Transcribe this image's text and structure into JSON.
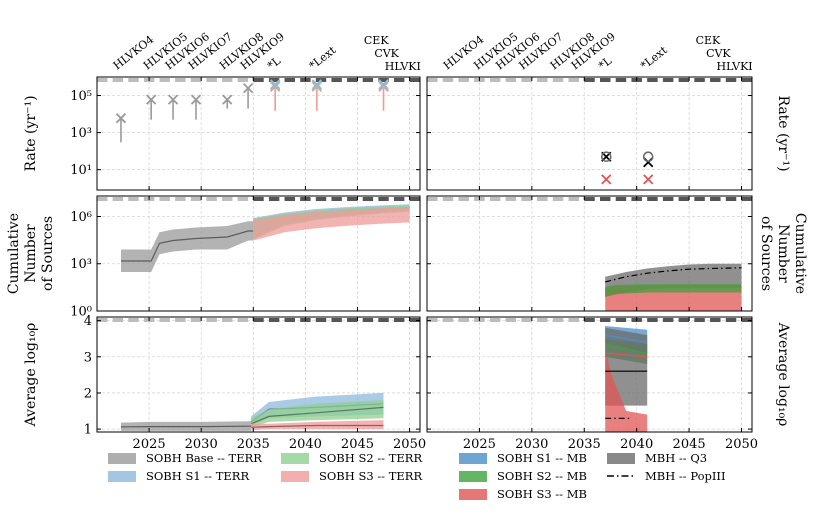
{
  "chart_data": {
    "type": "area",
    "xlim": [
      2020,
      2051
    ],
    "xticks": [
      2025,
      2030,
      2035,
      2040,
      2045,
      2050
    ],
    "detector_labels": {
      "left": [
        {
          "text": "HLVKO4",
          "x": 2022.3
        },
        {
          "text": "HLVKIO5",
          "x": 2025.2
        },
        {
          "text": "HLVKIO6",
          "x": 2027.3
        },
        {
          "text": "HLVKIO7",
          "x": 2029.5
        },
        {
          "text": "HLVKIO8",
          "x": 2032.5
        },
        {
          "text": "HLVKIO9",
          "x": 2034.5
        },
        {
          "text": "*L",
          "x": 2037.1
        },
        {
          "text": "*Lext",
          "x": 2041.1
        },
        {
          "text": "CEK",
          "x": 2046.0
        },
        {
          "text": "CVK",
          "x": 2047.0
        },
        {
          "text": "HLVKI",
          "x": 2048.0
        }
      ],
      "right": [
        {
          "text": "HLVKO4",
          "x": 2022.3
        },
        {
          "text": "HLVKIO5",
          "x": 2025.2
        },
        {
          "text": "HLVKIO6",
          "x": 2027.3
        },
        {
          "text": "HLVKIO7",
          "x": 2029.5
        },
        {
          "text": "HLVKIO8",
          "x": 2032.5
        },
        {
          "text": "HLVKIO9",
          "x": 2034.5
        },
        {
          "text": "*L",
          "x": 2037.1
        },
        {
          "text": "*Lext",
          "x": 2041.1
        },
        {
          "text": "CEK",
          "x": 2046.0
        },
        {
          "text": "CVK",
          "x": 2047.0
        },
        {
          "text": "HLVKI",
          "x": 2048.0
        }
      ]
    },
    "rows": [
      {
        "key": "rate",
        "ylabel_left": "Rate (yr⁻¹)",
        "ylabel_right": "Rate (yr⁻¹)",
        "yscale": "log",
        "ylim": [
          0.8,
          1000000
        ],
        "yticks": [
          {
            "v": 10,
            "label": "10¹"
          },
          {
            "v": 1000,
            "label": "10³"
          },
          {
            "v": 100000,
            "label": "10⁵"
          }
        ]
      },
      {
        "key": "cumulative",
        "ylabel_left": [
          "Cumulative",
          "Number",
          "of Sources"
        ],
        "ylabel_right": [
          "Cumulative",
          "Number",
          "of Sources"
        ],
        "yscale": "log",
        "ylim": [
          1,
          20000000
        ],
        "yticks": [
          {
            "v": 1,
            "label": "10⁰"
          },
          {
            "v": 1000,
            "label": "10³"
          },
          {
            "v": 1000000,
            "label": "10⁶"
          }
        ]
      },
      {
        "key": "snr",
        "ylabel_left": "Average log₁₀ρ",
        "ylabel_right": "Average log₁₀ρ",
        "yscale": "linear",
        "ylim": [
          0.92,
          4.1
        ],
        "yticks": [
          {
            "v": 1,
            "label": "1"
          },
          {
            "v": 2,
            "label": "2"
          },
          {
            "v": 3,
            "label": "3"
          },
          {
            "v": 4,
            "label": "4"
          }
        ]
      }
    ],
    "series": {
      "base_terr": {
        "name": "SOBH Base -- TERR",
        "color": "#9a9a9a"
      },
      "s1_terr": {
        "name": "SOBH S1 -- TERR",
        "color": "#8fb8dc"
      },
      "s2_terr": {
        "name": "SOBH S2 -- TERR",
        "color": "#8fcf8f"
      },
      "s3_terr": {
        "name": "SOBH S3 -- TERR",
        "color": "#f09a9a"
      },
      "s1_mb": {
        "name": "SOBH S1 -- MB",
        "color": "#4b8fc6"
      },
      "s2_mb": {
        "name": "SOBH S2 -- MB",
        "color": "#3da23d"
      },
      "s3_mb": {
        "name": "SOBH S3 -- MB",
        "color": "#e05555"
      },
      "mbh_q3": {
        "name": "MBH -- Q3",
        "color": "#6b6b6b"
      },
      "mbh_popiii": {
        "name": "MBH -- PopIII",
        "color": "#000000"
      }
    },
    "legend": [
      {
        "key": "base_terr",
        "marker": "patch"
      },
      {
        "key": "s1_terr",
        "marker": "patch"
      },
      {
        "key": "s2_terr",
        "marker": "patch"
      },
      {
        "key": "s3_terr",
        "marker": "patch"
      },
      {
        "key": "s1_mb",
        "marker": "patch"
      },
      {
        "key": "s2_mb",
        "marker": "patch"
      },
      {
        "key": "s3_mb",
        "marker": "patch"
      },
      {
        "key": "mbh_q3",
        "marker": "patch"
      },
      {
        "key": "mbh_popiii",
        "marker": "dashdot"
      }
    ],
    "legend_placement": "bottom",
    "grid": true,
    "panels": {
      "rate_left": {
        "markers": [
          {
            "series": "base_terr",
            "x": 2022.3,
            "y": 6000,
            "low": 300,
            "high": 6000
          },
          {
            "series": "base_terr",
            "x": 2025.2,
            "y": 60000,
            "low": 5000,
            "high": 60000
          },
          {
            "series": "base_terr",
            "x": 2027.3,
            "y": 60000,
            "low": 5000,
            "high": 60000
          },
          {
            "series": "base_terr",
            "x": 2029.5,
            "y": 60000,
            "low": 5000,
            "high": 60000
          },
          {
            "series": "base_terr",
            "x": 2032.5,
            "y": 60000,
            "low": 20000,
            "high": 60000
          },
          {
            "series": "base_terr",
            "x": 2034.5,
            "y": 250000,
            "low": 20000,
            "high": 250000
          },
          {
            "series": "s3_terr",
            "x": 2037.1,
            "y": 300000,
            "low": 15000,
            "high": 350000
          },
          {
            "series": "s2_terr",
            "x": 2037.1,
            "y": 350000
          },
          {
            "series": "s1_terr",
            "x": 2037.1,
            "y": 400000
          },
          {
            "series": "s3_terr",
            "x": 2041.1,
            "y": 300000,
            "low": 15000,
            "high": 350000
          },
          {
            "series": "s2_terr",
            "x": 2041.1,
            "y": 350000
          },
          {
            "series": "s1_terr",
            "x": 2041.1,
            "y": 400000
          },
          {
            "series": "s3_terr",
            "x": 2047.5,
            "y": 300000,
            "low": 15000,
            "high": 350000
          },
          {
            "series": "s2_terr",
            "x": 2047.5,
            "y": 350000
          },
          {
            "series": "s1_terr",
            "x": 2047.5,
            "y": 400000
          }
        ]
      },
      "rate_right": {
        "markers": [
          {
            "series": "mbh_popiii",
            "x": 2037.1,
            "y": 50,
            "symbol": "x"
          },
          {
            "series": "mbh_q3",
            "x": 2037.1,
            "y": 50,
            "symbol": "o"
          },
          {
            "series": "s3_mb",
            "x": 2037.1,
            "y": 3,
            "symbol": "x"
          },
          {
            "series": "mbh_popiii",
            "x": 2041.1,
            "y": 25,
            "symbol": "x"
          },
          {
            "series": "mbh_q3",
            "x": 2041.1,
            "y": 50,
            "symbol": "o"
          },
          {
            "series": "s3_mb",
            "x": 2041.1,
            "y": 3,
            "symbol": "x"
          }
        ]
      },
      "cumulative_left": {
        "bands": [
          {
            "series": "base_terr",
            "x": [
              2022.3,
              2025.2,
              2026,
              2027.3,
              2029.5,
              2032.5,
              2034.5,
              2035
            ],
            "low": [
              300,
              300,
              4000,
              6000,
              8000,
              8000,
              30000,
              30000
            ],
            "high": [
              8000,
              8000,
              100000,
              150000,
              200000,
              250000,
              500000,
              500000
            ],
            "mid": [
              1500,
              1500,
              20000,
              30000,
              40000,
              50000,
              120000,
              120000
            ]
          },
          {
            "series": "s1_terr",
            "x": [
              2035,
              2038,
              2041,
              2044,
              2047,
              2050
            ],
            "low": [
              40000,
              300000,
              700000,
              1200000,
              1800000,
              2500000
            ],
            "high": [
              800000,
              1800000,
              3000000,
              4000000,
              5000000,
              6000000
            ]
          },
          {
            "series": "s2_terr",
            "x": [
              2035,
              2038,
              2041,
              2044,
              2047,
              2050
            ],
            "low": [
              35000,
              250000,
              600000,
              1000000,
              1500000,
              2000000
            ],
            "high": [
              700000,
              1500000,
              2500000,
              3300000,
              4200000,
              5000000
            ]
          },
          {
            "series": "s3_terr",
            "x": [
              2035,
              2038,
              2041,
              2044,
              2047,
              2050
            ],
            "low": [
              30000,
              100000,
              180000,
              260000,
              340000,
              420000
            ],
            "high": [
              600000,
              1300000,
              2000000,
              2600000,
              3300000,
              4000000
            ]
          }
        ]
      },
      "cumulative_right": {
        "bands": [
          {
            "series": "mbh_q3",
            "x": [
              2037,
              2039,
              2041,
              2043,
              2045,
              2047,
              2050
            ],
            "low": [
              8,
              15,
              25,
              30,
              30,
              30,
              30
            ],
            "high": [
              150,
              300,
              500,
              700,
              900,
              1000,
              1000
            ]
          },
          {
            "series": "s3_mb",
            "x": [
              2037,
              2038,
              2041,
              2045,
              2050
            ],
            "low": [
              1.05,
              1.05,
              1.05,
              1.05,
              1.05
            ],
            "high": [
              25,
              40,
              45,
              45,
              45
            ]
          },
          {
            "series": "s2_mb",
            "x": [
              2037,
              2038,
              2041,
              2045,
              2050
            ],
            "low": [
              8,
              12,
              15,
              15,
              15
            ],
            "high": [
              35,
              45,
              50,
              50,
              50
            ]
          }
        ],
        "lines": [
          {
            "series": "mbh_popiii",
            "x": [
              2037,
              2039,
              2041,
              2043,
              2045,
              2047,
              2050
            ],
            "y": [
              70,
              150,
              250,
              350,
              450,
              500,
              550
            ]
          }
        ]
      },
      "snr_left": {
        "bands": [
          {
            "series": "base_terr",
            "x": [
              2022.3,
              2025,
              2030,
              2034.8
            ],
            "low": [
              0.95,
              0.95,
              0.95,
              0.95
            ],
            "high": [
              1.18,
              1.2,
              1.2,
              1.22
            ],
            "mid": [
              1.06,
              1.07,
              1.07,
              1.08
            ]
          },
          {
            "series": "s1_terr",
            "x": [
              2034.8,
              2036.5,
              2041,
              2047.5
            ],
            "low": [
              1.1,
              1.3,
              1.35,
              1.4
            ],
            "high": [
              1.35,
              1.75,
              1.9,
              2.0
            ],
            "mid": [
              1.2,
              1.55,
              1.6,
              1.7
            ]
          },
          {
            "series": "s2_terr",
            "x": [
              2034.8,
              2036.5,
              2041,
              2047.5
            ],
            "low": [
              1.05,
              1.2,
              1.25,
              1.3
            ],
            "high": [
              1.3,
              1.55,
              1.7,
              1.8
            ],
            "mid": [
              1.15,
              1.35,
              1.45,
              1.6
            ]
          },
          {
            "series": "s3_terr",
            "x": [
              2034.8,
              2036.5,
              2041,
              2047.5
            ],
            "low": [
              0.97,
              1.0,
              1.0,
              1.0
            ],
            "high": [
              1.15,
              1.15,
              1.2,
              1.25
            ],
            "mid": [
              1.05,
              1.07,
              1.1,
              1.1
            ]
          }
        ]
      },
      "snr_right": {
        "bands": [
          {
            "series": "s1_mb",
            "x": [
              2037,
              2041
            ],
            "low": [
              3.4,
              3.1
            ],
            "high": [
              3.85,
              3.75
            ]
          },
          {
            "series": "s2_mb",
            "x": [
              2037,
              2041
            ],
            "low": [
              3.0,
              2.8
            ],
            "high": [
              3.5,
              3.35
            ]
          },
          {
            "series": "mbh_q3",
            "x": [
              2037,
              2041
            ],
            "low": [
              1.65,
              1.65
            ],
            "high": [
              3.8,
              3.6
            ]
          },
          {
            "series": "s3_mb",
            "x": [
              2037,
              2037.6,
              2039,
              2041
            ],
            "low": [
              0.92,
              0.92,
              0.92,
              0.92
            ],
            "high": [
              3.2,
              2.5,
              1.5,
              1.4
            ]
          }
        ],
        "lines": [
          {
            "series": "s3_mb",
            "x": [
              2037,
              2041
            ],
            "y": [
              3.1,
              3.0
            ]
          },
          {
            "series": "s2_mb",
            "x": [
              2037,
              2041
            ],
            "y": [
              3.3,
              3.1
            ]
          },
          {
            "series": "s1_mb",
            "x": [
              2037,
              2041
            ],
            "y": [
              3.6,
              3.4
            ]
          },
          {
            "series": "mbh_popiii",
            "x": [
              2037,
              2041
            ],
            "y": [
              2.6,
              2.6
            ],
            "style": "solid"
          },
          {
            "series": "mbh_popiii",
            "x": [
              2037,
              2039.5
            ],
            "y": [
              1.3,
              1.3
            ],
            "style": "dashdot"
          }
        ]
      }
    }
  }
}
